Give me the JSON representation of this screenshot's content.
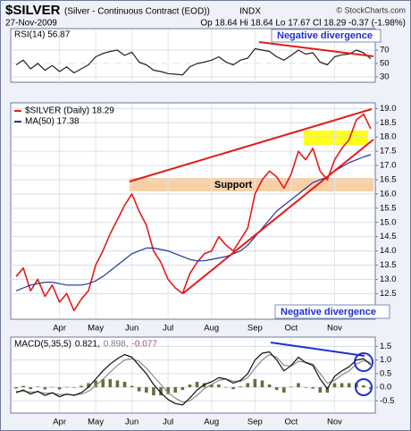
{
  "header": {
    "ticker": "$SILVER",
    "description": "(Silver - Continuous Contract (EOD))",
    "exchange": "INDX",
    "copyright": "© StockCharts.com",
    "date": "27-Nov-2009",
    "quote": "Op 18.64 Hi 18.64 Lo 17.67 Cl 18.29 -0.37 (-1.98%)"
  },
  "chart_data": [
    {
      "type": "line",
      "title": "RSI(14) 56.87",
      "annotations": [
        "Negative divergence"
      ],
      "ylim": [
        22,
        102
      ],
      "yticks": [
        30,
        50,
        70
      ],
      "series": [
        {
          "name": "RSI(14)",
          "color": "#222222",
          "values": [
            48,
            55,
            42,
            50,
            40,
            47,
            38,
            45,
            36,
            42,
            48,
            60,
            65,
            68,
            70,
            62,
            67,
            52,
            48,
            40,
            38,
            35,
            34,
            33,
            45,
            50,
            52,
            55,
            60,
            52,
            48,
            55,
            58,
            72,
            70,
            68,
            60,
            55,
            62,
            70,
            64,
            66,
            52,
            48,
            60,
            63,
            64,
            70,
            66,
            56.87
          ]
        }
      ]
    },
    {
      "type": "line",
      "annotations": [
        "Support"
      ],
      "categories": [
        null,
        null,
        null,
        null,
        null,
        null,
        "Apr",
        null,
        null,
        null,
        null,
        "May",
        null,
        null,
        null,
        null,
        "Jun",
        null,
        null,
        null,
        null,
        "Jul",
        null,
        null,
        null,
        null,
        null,
        "Aug",
        null,
        null,
        null,
        null,
        null,
        "Sep",
        null,
        null,
        null,
        null,
        "Oct",
        null,
        null,
        null,
        null,
        null,
        "Nov",
        null,
        null,
        null,
        null,
        null
      ],
      "ylim": [
        11.6,
        19.2
      ],
      "yticks": [
        {
          "value": 12.5,
          "label": "12.5"
        },
        {
          "value": 13,
          "label": "13.0"
        },
        {
          "value": 13.5,
          "label": "13.5"
        },
        {
          "value": 14,
          "label": "14.0"
        },
        {
          "value": 14.5,
          "label": "14.5"
        },
        {
          "value": 15,
          "label": "15.0"
        },
        {
          "value": 15.5,
          "label": "15.5"
        },
        {
          "value": 16,
          "label": "16.0"
        },
        {
          "value": 16.5,
          "label": "16.5"
        },
        {
          "value": 17,
          "label": "17.0"
        },
        {
          "value": 17.5,
          "label": "17.5"
        },
        {
          "value": 18,
          "label": "18.0"
        },
        {
          "value": 18.5,
          "label": "18.5"
        },
        {
          "value": 19,
          "label": "19.0"
        }
      ],
      "grid": true,
      "series": [
        {
          "name": "$SILVER (Daily) 18.29",
          "color": "#e31b1b",
          "values": [
            13.1,
            13.4,
            12.6,
            13.0,
            12.4,
            12.8,
            12.2,
            12.5,
            11.9,
            12.3,
            12.6,
            13.5,
            14.0,
            14.6,
            15.1,
            15.6,
            16.0,
            15.4,
            14.9,
            14.0,
            13.6,
            13.0,
            12.7,
            12.5,
            13.2,
            13.6,
            13.9,
            14.0,
            14.5,
            14.2,
            14.0,
            14.4,
            14.8,
            16.0,
            16.5,
            16.8,
            16.6,
            16.2,
            16.7,
            17.5,
            17.2,
            17.6,
            16.8,
            16.5,
            17.2,
            17.6,
            17.9,
            18.6,
            18.8,
            18.29
          ]
        },
        {
          "name": "MA(50) 17.38",
          "color": "#1f3a93",
          "values": [
            12.6,
            12.7,
            12.8,
            12.85,
            12.9,
            12.9,
            12.85,
            12.8,
            12.8,
            12.8,
            12.85,
            12.95,
            13.1,
            13.3,
            13.5,
            13.7,
            13.9,
            14.0,
            14.1,
            14.1,
            14.05,
            14.0,
            13.9,
            13.8,
            13.7,
            13.65,
            13.65,
            13.7,
            13.75,
            13.8,
            13.9,
            14.0,
            14.2,
            14.5,
            14.8,
            15.1,
            15.4,
            15.6,
            15.8,
            16.0,
            16.2,
            16.4,
            16.5,
            16.6,
            16.8,
            16.95,
            17.1,
            17.2,
            17.3,
            17.38
          ]
        }
      ]
    },
    {
      "type": "line",
      "annotations": [
        "Negative divergence"
      ],
      "legend": [
        {
          "text": "MACD(5,35,5)",
          "color": "#000000"
        },
        {
          "text": "0.821,",
          "color": "#000000"
        },
        {
          "text": "0.898,",
          "color": "#7a7a7a"
        },
        {
          "text": "-0.077",
          "color": "#a0526e"
        }
      ],
      "ylim": [
        -0.95,
        1.84
      ],
      "yticks": [
        {
          "value": -0.5,
          "label": "-0.5"
        },
        {
          "value": 0,
          "label": "0.0"
        },
        0.5,
        {
          "value": 1,
          "label": "1.0"
        },
        1.5
      ],
      "series": [
        {
          "name": "MACD",
          "type": "bar",
          "color": "#6e6a3c",
          "values": [
            -0.05,
            0.05,
            -0.07,
            0.02,
            -0.08,
            0.01,
            -0.08,
            0.01,
            -0.02,
            0.05,
            0.15,
            0.25,
            0.3,
            0.3,
            0.25,
            0.2,
            0.05,
            -0.15,
            -0.2,
            -0.3,
            -0.3,
            -0.25,
            -0.2,
            -0.1,
            0.1,
            0.2,
            0.15,
            0.1,
            0.1,
            0.0,
            -0.07,
            0.03,
            0.15,
            0.3,
            0.25,
            0.1,
            -0.1,
            -0.2,
            0.02,
            0.15,
            -0.02,
            -0.05,
            -0.2,
            -0.2,
            0.15,
            0.15,
            0.15,
            0.15,
            0.07,
            -0.077
          ]
        },
        {
          "name": "Signal",
          "color": "#8a8a8a",
          "values": [
            -0.15,
            -0.15,
            -0.18,
            -0.17,
            -0.22,
            -0.21,
            -0.27,
            -0.26,
            -0.28,
            -0.25,
            -0.15,
            0.05,
            0.3,
            0.55,
            0.8,
            1.0,
            1.05,
            0.95,
            0.7,
            0.4,
            0.1,
            -0.2,
            -0.4,
            -0.55,
            -0.5,
            -0.3,
            -0.05,
            0.1,
            0.25,
            0.3,
            0.22,
            0.22,
            0.35,
            0.7,
            1.0,
            1.2,
            1.1,
            0.8,
            0.78,
            0.95,
            0.92,
            0.85,
            0.5,
            0.15,
            0.25,
            0.45,
            0.6,
            0.85,
            0.98,
            0.898
          ]
        },
        {
          "name": "MACD",
          "color": "#111111",
          "values": [
            -0.2,
            -0.1,
            -0.25,
            -0.15,
            -0.3,
            -0.2,
            -0.35,
            -0.25,
            -0.3,
            -0.2,
            0.0,
            0.3,
            0.6,
            0.85,
            1.05,
            1.2,
            1.1,
            0.8,
            0.5,
            0.1,
            -0.2,
            -0.45,
            -0.6,
            -0.65,
            -0.4,
            -0.1,
            0.1,
            0.2,
            0.35,
            0.3,
            0.15,
            0.25,
            0.5,
            1.0,
            1.25,
            1.3,
            1.0,
            0.6,
            0.8,
            1.1,
            0.9,
            0.8,
            0.3,
            -0.05,
            0.4,
            0.6,
            0.75,
            1.0,
            1.05,
            0.821
          ]
        }
      ]
    }
  ]
}
